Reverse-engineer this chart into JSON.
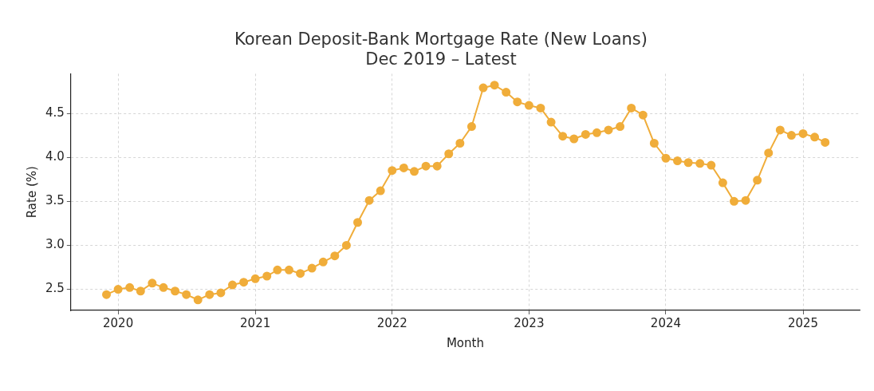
{
  "chart_data": {
    "type": "line",
    "title": "Korean Deposit-Bank Mortgage Rate (New Loans)\nDec 2019 – Latest",
    "xlabel": "Month",
    "ylabel": "Rate (%)",
    "x": [
      "2019-12",
      "2020-01",
      "2020-02",
      "2020-03",
      "2020-04",
      "2020-05",
      "2020-06",
      "2020-07",
      "2020-08",
      "2020-09",
      "2020-10",
      "2020-11",
      "2020-12",
      "2021-01",
      "2021-02",
      "2021-03",
      "2021-04",
      "2021-05",
      "2021-06",
      "2021-07",
      "2021-08",
      "2021-09",
      "2021-10",
      "2021-11",
      "2021-12",
      "2022-01",
      "2022-02",
      "2022-03",
      "2022-04",
      "2022-05",
      "2022-06",
      "2022-07",
      "2022-08",
      "2022-09",
      "2022-10",
      "2022-11",
      "2022-12",
      "2023-01",
      "2023-02",
      "2023-03",
      "2023-04",
      "2023-05",
      "2023-06",
      "2023-07",
      "2023-08",
      "2023-09",
      "2023-10",
      "2023-11",
      "2023-12",
      "2024-01",
      "2024-02",
      "2024-03",
      "2024-04",
      "2024-05",
      "2024-06",
      "2024-07",
      "2024-08",
      "2024-09",
      "2024-10",
      "2024-11",
      "2024-12",
      "2025-01",
      "2025-02",
      "2025-03"
    ],
    "series": [
      {
        "color": "#f0ad3a",
        "values": [
          2.44,
          2.5,
          2.52,
          2.48,
          2.57,
          2.52,
          2.48,
          2.44,
          2.38,
          2.44,
          2.46,
          2.55,
          2.58,
          2.62,
          2.65,
          2.72,
          2.72,
          2.68,
          2.74,
          2.81,
          2.88,
          3.0,
          3.26,
          3.51,
          3.62,
          3.85,
          3.88,
          3.84,
          3.9,
          3.9,
          4.04,
          4.16,
          4.35,
          4.79,
          4.82,
          4.74,
          4.63,
          4.59,
          4.56,
          4.4,
          4.24,
          4.21,
          4.26,
          4.28,
          4.31,
          4.35,
          4.56,
          4.48,
          4.16,
          3.99,
          3.96,
          3.94,
          3.93,
          3.91,
          3.71,
          3.5,
          3.51,
          3.74,
          4.05,
          4.31,
          4.25,
          4.27,
          4.23,
          4.17
        ]
      }
    ],
    "xlim": [
      "2019-08-28",
      "2025-06-01"
    ],
    "xticks": [
      {
        "value": "2020-01-01",
        "label": "2020"
      },
      {
        "value": "2021-01-01",
        "label": "2021"
      },
      {
        "value": "2022-01-01",
        "label": "2022"
      },
      {
        "value": "2023-01-01",
        "label": "2023"
      },
      {
        "value": "2024-01-01",
        "label": "2024"
      },
      {
        "value": "2025-01-01",
        "label": "2025"
      }
    ],
    "ylim": [
      2.26,
      4.95
    ],
    "yticks": [
      2.5,
      {
        "value": 3,
        "label": "3.0"
      },
      3.5,
      {
        "value": 4,
        "label": "4.0"
      },
      4.5
    ],
    "grid": true,
    "legend": false,
    "marker": "circle",
    "line_style": "solid"
  }
}
